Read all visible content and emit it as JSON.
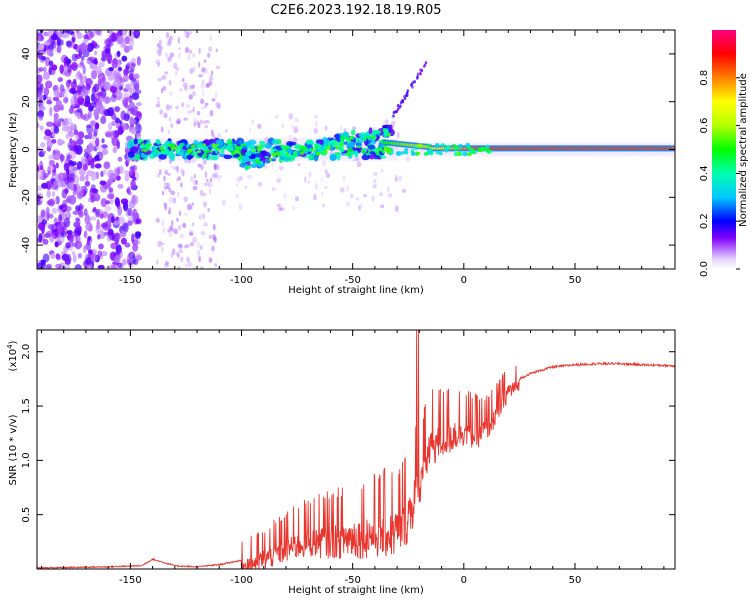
{
  "title": "C2E6.2023.192.18.19.R05",
  "chart_data": [
    {
      "type": "heatmap",
      "xlabel": "Height of straight line (km)",
      "ylabel": "Frequency (Hz)",
      "xlim": [
        -192,
        95
      ],
      "ylim": [
        -50,
        50
      ],
      "xticks": [
        -150,
        -100,
        -50,
        0,
        50
      ],
      "yticks": [
        -40,
        -20,
        0,
        20,
        40
      ],
      "xtick_labels": [
        "-150",
        "-100",
        "-50",
        "0",
        "50"
      ],
      "ytick_labels": [
        "-40",
        "-20",
        "0",
        "20",
        "40"
      ],
      "colorbar": {
        "label": "Normalized spectral amplitude",
        "ticks": [
          0.0,
          0.2,
          0.4,
          0.6,
          0.8
        ],
        "tick_labels": [
          "0.0",
          "0.2",
          "0.4",
          "0.6",
          "0.8"
        ],
        "range": [
          0,
          1
        ]
      },
      "features": {
        "main_line_height": [
          -150,
          95
        ],
        "main_line_freq": 0,
        "rising_branch": {
          "height": [
            -100,
            -35
          ],
          "freq": [
            -10,
            15
          ]
        },
        "extension": {
          "height": [
            -30,
            -17
          ],
          "freq": [
            15,
            37
          ]
        },
        "noise_region_height": [
          -192,
          -148
        ]
      }
    },
    {
      "type": "line",
      "xlabel": "Height of straight line (km)",
      "ylabel": "SNR (10 * v/v)",
      "scale_label": "(x10",
      "scale_exponent": "4",
      "scale_close": ")",
      "xlim": [
        -192,
        95
      ],
      "ylim": [
        0,
        2.2
      ],
      "xticks": [
        -150,
        -100,
        -50,
        0,
        50
      ],
      "yticks": [
        0.5,
        1.0,
        1.5,
        2.0
      ],
      "xtick_labels": [
        "-150",
        "-100",
        "-50",
        "0",
        "50"
      ],
      "ytick_labels": [
        "0.5",
        "1.0",
        "1.5",
        "2.0"
      ],
      "series": [
        {
          "name": "SNR",
          "color": "#e8352e",
          "x": [
            -192,
            -160,
            -145,
            -140,
            -130,
            -120,
            -110,
            -100,
            -90,
            -80,
            -70,
            -60,
            -50,
            -40,
            -30,
            -25,
            -20,
            -15,
            -10,
            -5,
            0,
            5,
            10,
            15,
            20,
            25,
            30,
            40,
            50,
            60,
            70,
            80,
            95
          ],
          "y": [
            0.01,
            0.02,
            0.03,
            0.09,
            0.03,
            0.02,
            0.04,
            0.08,
            0.15,
            0.25,
            0.32,
            0.33,
            0.35,
            0.38,
            0.4,
            0.55,
            0.85,
            1.2,
            1.25,
            1.3,
            1.35,
            1.3,
            1.35,
            1.5,
            1.7,
            1.75,
            1.8,
            1.86,
            1.88,
            1.89,
            1.89,
            1.88,
            1.87
          ]
        }
      ]
    }
  ],
  "colors": {
    "curve": "#e8352e",
    "axis": "#000000"
  }
}
